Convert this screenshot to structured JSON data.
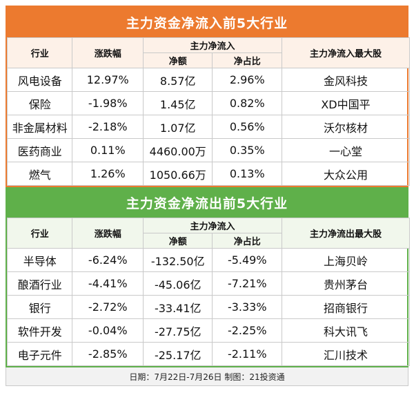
{
  "inflow": {
    "title": "主力资金净流入前5大行业",
    "header": {
      "industry": "行业",
      "change": "涨跌幅",
      "group": "主力净流入",
      "amount": "净额",
      "ratio": "净占比",
      "top_stock": "主力净流入最大股"
    },
    "rows": [
      {
        "industry": "风电设备",
        "change": "12.97%",
        "amount": "8.57亿",
        "ratio": "2.96%",
        "top_stock": "金风科技"
      },
      {
        "industry": "保险",
        "change": "-1.98%",
        "amount": "1.45亿",
        "ratio": "0.82%",
        "top_stock": "XD中国平"
      },
      {
        "industry": "非金属材料",
        "change": "-2.18%",
        "amount": "1.07亿",
        "ratio": "0.56%",
        "top_stock": "沃尔核材"
      },
      {
        "industry": "医药商业",
        "change": "0.11%",
        "amount": "4460.00万",
        "ratio": "0.35%",
        "top_stock": "一心堂"
      },
      {
        "industry": "燃气",
        "change": "1.26%",
        "amount": "1050.66万",
        "ratio": "0.13%",
        "top_stock": "大众公用"
      }
    ]
  },
  "outflow": {
    "title": "主力资金净流出前5大行业",
    "header": {
      "industry": "行业",
      "change": "涨跌幅",
      "group": "主力净流入",
      "amount": "净额",
      "ratio": "净占比",
      "top_stock": "主力净流出最大股"
    },
    "rows": [
      {
        "industry": "半导体",
        "change": "-6.24%",
        "amount": "-132.50亿",
        "ratio": "-5.49%",
        "top_stock": "上海贝岭"
      },
      {
        "industry": "酿酒行业",
        "change": "-4.41%",
        "amount": "-45.06亿",
        "ratio": "-7.21%",
        "top_stock": "贵州茅台"
      },
      {
        "industry": "银行",
        "change": "-2.72%",
        "amount": "-33.41亿",
        "ratio": "-3.33%",
        "top_stock": "招商银行"
      },
      {
        "industry": "软件开发",
        "change": "-0.04%",
        "amount": "-27.75亿",
        "ratio": "-2.25%",
        "top_stock": "科大讯飞"
      },
      {
        "industry": "电子元件",
        "change": "-2.85%",
        "amount": "-25.17亿",
        "ratio": "-2.11%",
        "top_stock": "汇川技术"
      }
    ]
  },
  "footer": "日期：7月22日-7月26日 制图：21投资通",
  "colors": {
    "inflow_accent": "#ec7a2f",
    "outflow_accent": "#5fb04a"
  }
}
